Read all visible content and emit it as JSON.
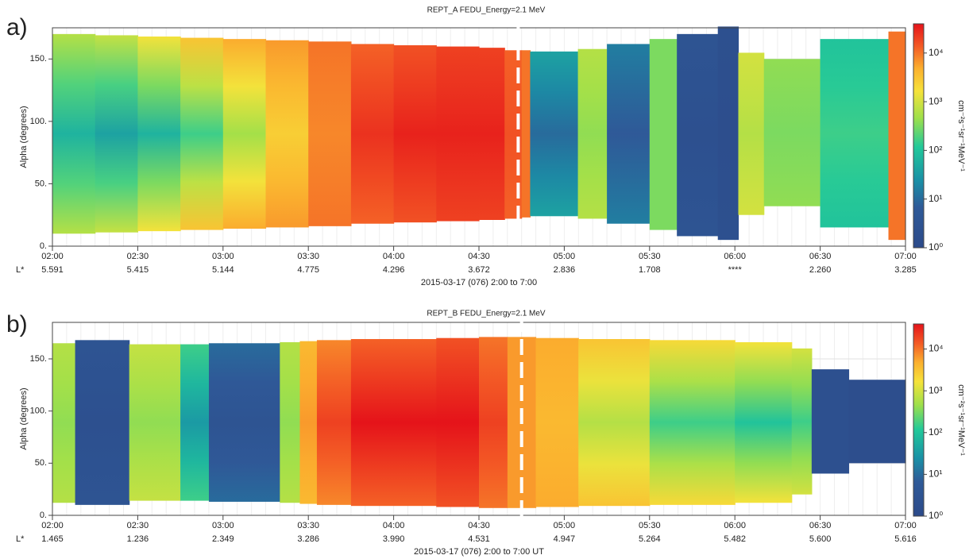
{
  "chart_data": [
    {
      "type": "heatmap",
      "panel_label": "a)",
      "title": "REPT_A FEDU_Energy=2.1 MeV",
      "ylabel": "Alpha (degrees)",
      "xlabel": "2015-03-17 (076) 2:00 to 7:00",
      "secondary_axis_label": "L*",
      "colorbar_label": "cm⁻²s⁻¹sr⁻¹MeV⁻¹",
      "xlim": [
        2,
        7
      ],
      "xticks": [
        {
          "value": 2,
          "label": "02:00"
        },
        {
          "value": 2.5,
          "label": "02:30"
        },
        {
          "value": 3,
          "label": "03:00"
        },
        {
          "value": 3.5,
          "label": "03:30"
        },
        {
          "value": 4,
          "label": "04:00"
        },
        {
          "value": 4.5,
          "label": "04:30"
        },
        {
          "value": 5,
          "label": "05:00"
        },
        {
          "value": 5.5,
          "label": "05:30"
        },
        {
          "value": 6,
          "label": "06:00"
        },
        {
          "value": 6.5,
          "label": "06:30"
        },
        {
          "value": 7,
          "label": "07:00"
        }
      ],
      "secondary_xticks": [
        {
          "value": 2,
          "label": "5.591"
        },
        {
          "value": 2.5,
          "label": "5.415"
        },
        {
          "value": 3,
          "label": "5.144"
        },
        {
          "value": 3.5,
          "label": "4.775"
        },
        {
          "value": 4,
          "label": "4.296"
        },
        {
          "value": 4.5,
          "label": "3.672"
        },
        {
          "value": 5,
          "label": "2.836"
        },
        {
          "value": 5.5,
          "label": "1.708"
        },
        {
          "value": 6,
          "label": "****"
        },
        {
          "value": 6.5,
          "label": "2.260"
        },
        {
          "value": 7,
          "label": "3.285"
        }
      ],
      "ylim": [
        0,
        175
      ],
      "yticks": [
        {
          "value": 0,
          "label": "0."
        },
        {
          "value": 50,
          "label": "50."
        },
        {
          "value": 100,
          "label": "100."
        },
        {
          "value": 150,
          "label": "150."
        }
      ],
      "clim": [
        0,
        4.6
      ],
      "cticks": [
        {
          "value": 0,
          "label": "10⁰"
        },
        {
          "value": 1,
          "label": "10¹"
        },
        {
          "value": 2,
          "label": "10²"
        },
        {
          "value": 3,
          "label": "10³"
        },
        {
          "value": 4,
          "label": "10⁴"
        }
      ],
      "colormap": [
        {
          "at": 0,
          "color": "#2c4a8a"
        },
        {
          "at": 0.18,
          "color": "#2f5a98"
        },
        {
          "at": 0.3,
          "color": "#1a90a6"
        },
        {
          "at": 0.45,
          "color": "#22c99a"
        },
        {
          "at": 0.58,
          "color": "#9fe04a"
        },
        {
          "at": 0.7,
          "color": "#f6e23a"
        },
        {
          "at": 0.8,
          "color": "#fbb02e"
        },
        {
          "at": 0.9,
          "color": "#f35a25"
        },
        {
          "at": 1,
          "color": "#e5131a"
        }
      ],
      "grid": true,
      "marker_x": 4.73,
      "x": [
        2,
        2.25,
        2.5,
        2.75,
        3,
        3.25,
        3.5,
        3.75,
        4,
        4.25,
        4.5,
        4.65,
        4.75,
        4.8,
        5.08,
        5.25,
        5.5,
        5.66,
        5.9,
        6.02,
        6.17,
        6.5,
        6.9
      ],
      "alpha_min": [
        10,
        11,
        12,
        13,
        14,
        15,
        16,
        18,
        19,
        20,
        21,
        22,
        23,
        24,
        22,
        18,
        13,
        8,
        5,
        25,
        32,
        15,
        5
      ],
      "alpha_max": [
        170,
        169,
        168,
        167,
        166,
        165,
        164,
        162,
        161,
        160,
        159,
        157,
        157,
        156,
        158,
        162,
        166,
        170,
        176,
        155,
        150,
        166,
        172
      ],
      "flux_center": [
        1.8,
        1.6,
        1.8,
        2.2,
        2.7,
        3.4,
        3.9,
        4.4,
        4.5,
        4.5,
        4.5,
        4.2,
        4.0,
        1.0,
        2.6,
        0.8,
        2.5,
        0.3,
        0.2,
        2.8,
        2.5,
        2.2,
        4.0
      ],
      "flux_edge": [
        2.8,
        2.9,
        3.2,
        3.5,
        3.7,
        3.8,
        4.0,
        4.1,
        4.2,
        4.3,
        4.3,
        4.1,
        4.0,
        1.6,
        2.8,
        1.2,
        2.5,
        0.5,
        0.3,
        3.0,
        2.6,
        2.0,
        4.0
      ]
    },
    {
      "type": "heatmap",
      "panel_label": "b)",
      "title": "REPT_B FEDU_Energy=2.1 MeV",
      "ylabel": "Alpha (degrees)",
      "xlabel": "2015-03-17 (076) 2:00 to 7:00 UT",
      "secondary_axis_label": "L*",
      "colorbar_label": "cm⁻²s⁻¹sr⁻¹MeV⁻¹",
      "xlim": [
        2,
        7
      ],
      "xticks": [
        {
          "value": 2,
          "label": "02:00"
        },
        {
          "value": 2.5,
          "label": "02:30"
        },
        {
          "value": 3,
          "label": "03:00"
        },
        {
          "value": 3.5,
          "label": "03:30"
        },
        {
          "value": 4,
          "label": "04:00"
        },
        {
          "value": 4.5,
          "label": "04:30"
        },
        {
          "value": 5,
          "label": "05:00"
        },
        {
          "value": 5.5,
          "label": "05:30"
        },
        {
          "value": 6,
          "label": "06:00"
        },
        {
          "value": 6.5,
          "label": "06:30"
        },
        {
          "value": 7,
          "label": "07:00"
        }
      ],
      "secondary_xticks": [
        {
          "value": 2,
          "label": "1.465"
        },
        {
          "value": 2.5,
          "label": "1.236"
        },
        {
          "value": 3,
          "label": "2.349"
        },
        {
          "value": 3.5,
          "label": "3.286"
        },
        {
          "value": 4,
          "label": "3.990"
        },
        {
          "value": 4.5,
          "label": "4.531"
        },
        {
          "value": 5,
          "label": "4.947"
        },
        {
          "value": 5.5,
          "label": "5.264"
        },
        {
          "value": 6,
          "label": "5.482"
        },
        {
          "value": 6.5,
          "label": "5.600"
        },
        {
          "value": 7,
          "label": "5.616"
        }
      ],
      "ylim": [
        0,
        185
      ],
      "yticks": [
        {
          "value": 0,
          "label": "0."
        },
        {
          "value": 50,
          "label": "50."
        },
        {
          "value": 100,
          "label": "100."
        },
        {
          "value": 150,
          "label": "150."
        }
      ],
      "clim": [
        0,
        4.6
      ],
      "cticks": [
        {
          "value": 0,
          "label": "10⁰"
        },
        {
          "value": 1,
          "label": "10¹"
        },
        {
          "value": 2,
          "label": "10²"
        },
        {
          "value": 3,
          "label": "10³"
        },
        {
          "value": 4,
          "label": "10⁴"
        }
      ],
      "colormap": [
        {
          "at": 0,
          "color": "#2c4a8a"
        },
        {
          "at": 0.18,
          "color": "#2f5a98"
        },
        {
          "at": 0.3,
          "color": "#1a90a6"
        },
        {
          "at": 0.45,
          "color": "#22c99a"
        },
        {
          "at": 0.58,
          "color": "#9fe04a"
        },
        {
          "at": 0.7,
          "color": "#f6e23a"
        },
        {
          "at": 0.8,
          "color": "#fbb02e"
        },
        {
          "at": 0.9,
          "color": "#f35a25"
        },
        {
          "at": 1,
          "color": "#e5131a"
        }
      ],
      "grid": true,
      "marker_x": 4.75,
      "x": [
        2,
        2.133,
        2.45,
        2.75,
        2.917,
        3.333,
        3.45,
        3.55,
        3.75,
        4.25,
        4.5,
        4.667,
        4.833,
        5.083,
        5.5,
        6,
        6.333,
        6.45,
        6.667
      ],
      "alpha_min": [
        12,
        10,
        14,
        14,
        13,
        12,
        11,
        10,
        9,
        8,
        7,
        7,
        8,
        9,
        10,
        12,
        20,
        40,
        50
      ],
      "alpha_max": [
        165,
        168,
        164,
        164,
        165,
        166,
        167,
        168,
        169,
        170,
        171,
        171,
        170,
        169,
        168,
        166,
        160,
        140,
        130
      ],
      "flux_center": [
        2.6,
        0.3,
        2.6,
        1.5,
        0.5,
        2.6,
        3.8,
        4.3,
        4.6,
        4.6,
        4.3,
        3.8,
        3.6,
        2.8,
        2.2,
        2.0,
        2.2,
        0.3,
        0.2
      ],
      "flux_edge": [
        2.8,
        0.5,
        2.9,
        2.2,
        1.0,
        2.8,
        3.6,
        3.9,
        4.1,
        4.2,
        4.0,
        3.8,
        3.7,
        3.5,
        3.3,
        3.2,
        3.0,
        0.3,
        0.2
      ]
    }
  ]
}
